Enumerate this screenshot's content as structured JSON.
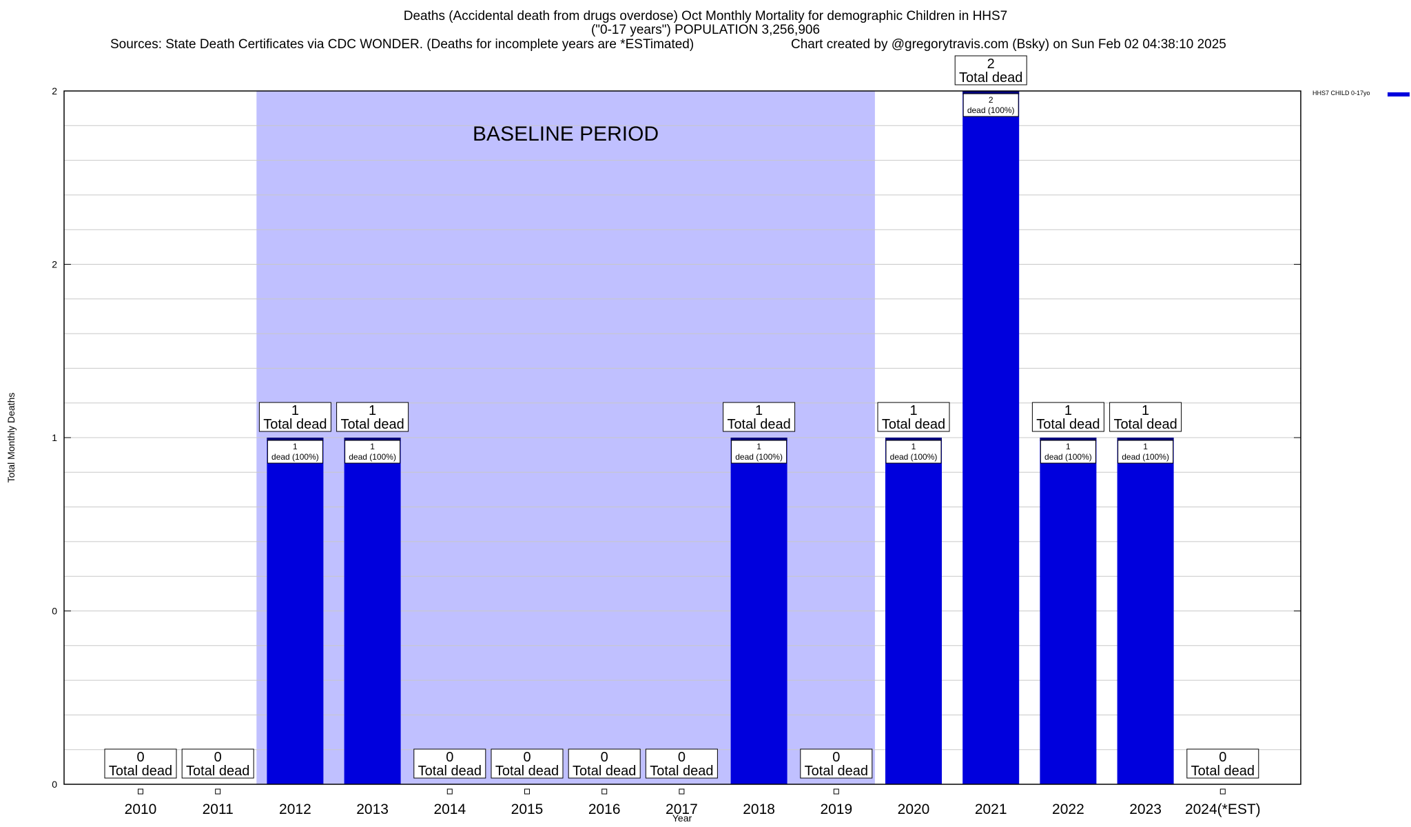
{
  "chart_data": {
    "type": "bar",
    "title_lines": [
      "Deaths (Accidental death from drugs overdose) Oct Monthly Mortality for demographic Children in HHS7",
      "(\"0-17 years\") POPULATION 3,256,906"
    ],
    "sources": "Sources: State Death Certificates via CDC WONDER. (Deaths for incomplete years are *ESTimated)",
    "credit": "Chart created by @gregorytravis.com (Bsky) on Sun Feb 02 04:38:10 2025",
    "xlabel": "Year",
    "ylabel": "Total Monthly Deaths",
    "ylim": [
      0,
      2
    ],
    "yticks": [
      "0",
      "0",
      "1",
      "2",
      "2"
    ],
    "categories": [
      "2010",
      "2011",
      "2012",
      "2013",
      "2014",
      "2015",
      "2016",
      "2017",
      "2018",
      "2019",
      "2020",
      "2021",
      "2022",
      "2023",
      "2024(*EST)"
    ],
    "series": [
      {
        "name": "HHS7 CHILD 0-17yo",
        "values": [
          0,
          0,
          1,
          1,
          0,
          0,
          0,
          0,
          1,
          0,
          1,
          2,
          1,
          1,
          0
        ]
      }
    ],
    "total_label_values": [
      "0",
      "0",
      "1",
      "1",
      "0",
      "0",
      "0",
      "0",
      "1",
      "0",
      "1",
      "2",
      "1",
      "1",
      "0"
    ],
    "total_label_suffix": "Total dead",
    "inner_label_suffix": "dead (100%)",
    "baseline": {
      "label": "BASELINE PERIOD",
      "start": "2012",
      "end": "2019"
    },
    "grid": true,
    "legend_position": "top-right",
    "colors": {
      "bar": "#0000dd",
      "bar_top": "#000080",
      "baseline": "#c0c0ff",
      "grid": "#c8c8c8"
    }
  }
}
